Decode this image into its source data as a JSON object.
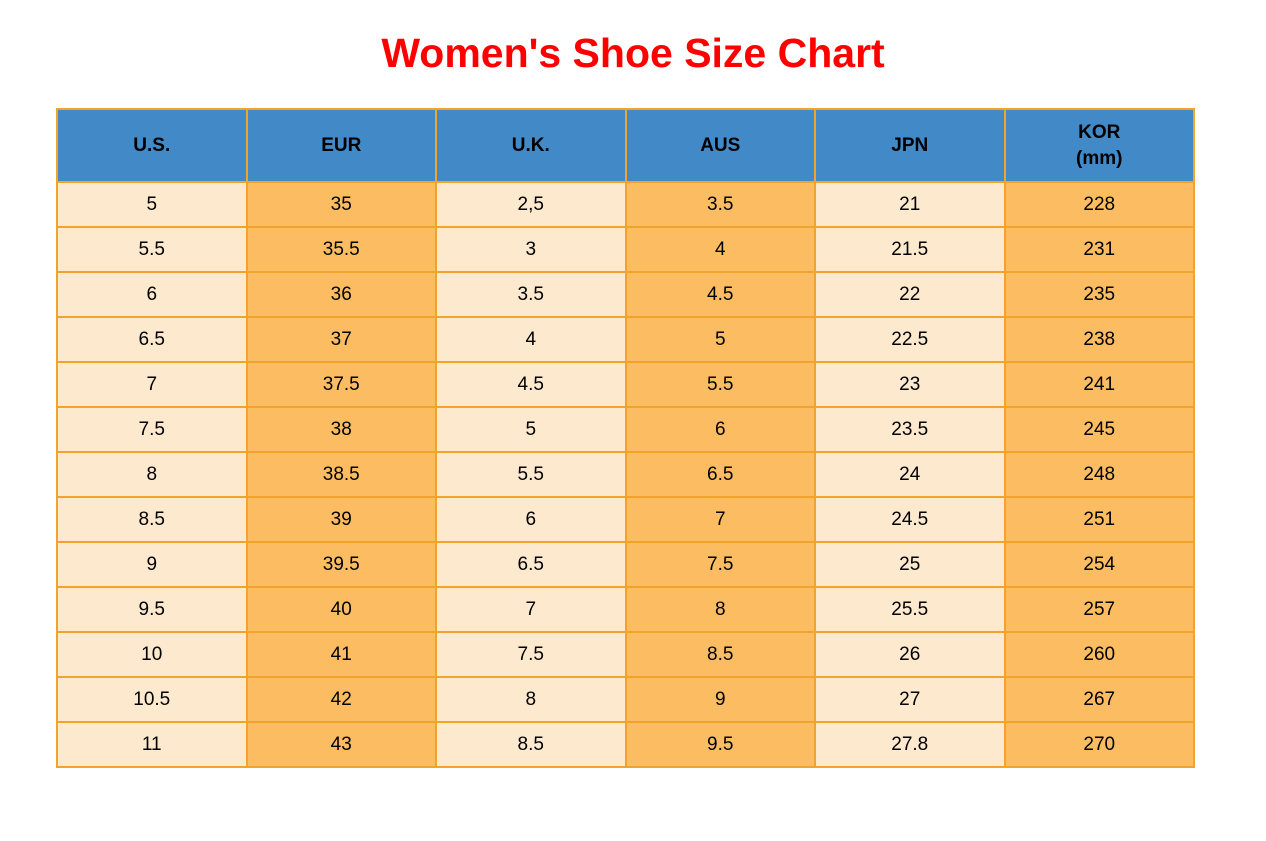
{
  "page_title": "Women's Shoe Size Chart",
  "colors": {
    "title_red": "#FF0000",
    "header_blue": "#4289C8",
    "cell_cream": "#FDE9CE",
    "cell_orange": "#FCBD62",
    "grid_border_orange": "#F2A32B",
    "text_black": "#000000",
    "page_background": "#FFFFFF"
  },
  "chart_data": {
    "type": "table",
    "title": "Women's Shoe Size Chart",
    "columns": [
      "U.S.",
      "EUR",
      "U.K.",
      "AUS",
      "JPN",
      "KOR (mm)"
    ],
    "header_labels": [
      [
        "U.S."
      ],
      [
        "EUR"
      ],
      [
        "U.K."
      ],
      [
        "AUS"
      ],
      [
        "JPN"
      ],
      [
        "KOR",
        "(mm)"
      ]
    ],
    "column_styles": [
      "cream",
      "orange",
      "cream",
      "orange",
      "cream",
      "orange"
    ],
    "rows": [
      [
        "5",
        "35",
        "2,5",
        "3.5",
        "21",
        "228"
      ],
      [
        "5.5",
        "35.5",
        "3",
        "4",
        "21.5",
        "231"
      ],
      [
        "6",
        "36",
        "3.5",
        "4.5",
        "22",
        "235"
      ],
      [
        "6.5",
        "37",
        "4",
        "5",
        "22.5",
        "238"
      ],
      [
        "7",
        "37.5",
        "4.5",
        "5.5",
        "23",
        "241"
      ],
      [
        "7.5",
        "38",
        "5",
        "6",
        "23.5",
        "245"
      ],
      [
        "8",
        "38.5",
        "5.5",
        "6.5",
        "24",
        "248"
      ],
      [
        "8.5",
        "39",
        "6",
        "7",
        "24.5",
        "251"
      ],
      [
        "9",
        "39.5",
        "6.5",
        "7.5",
        "25",
        "254"
      ],
      [
        "9.5",
        "40",
        "7",
        "8",
        "25.5",
        "257"
      ],
      [
        "10",
        "41",
        "7.5",
        "8.5",
        "26",
        "260"
      ],
      [
        "10.5",
        "42",
        "8",
        "9",
        "27",
        "267"
      ],
      [
        "11",
        "43",
        "8.5",
        "9.5",
        "27.8",
        "270"
      ]
    ]
  }
}
